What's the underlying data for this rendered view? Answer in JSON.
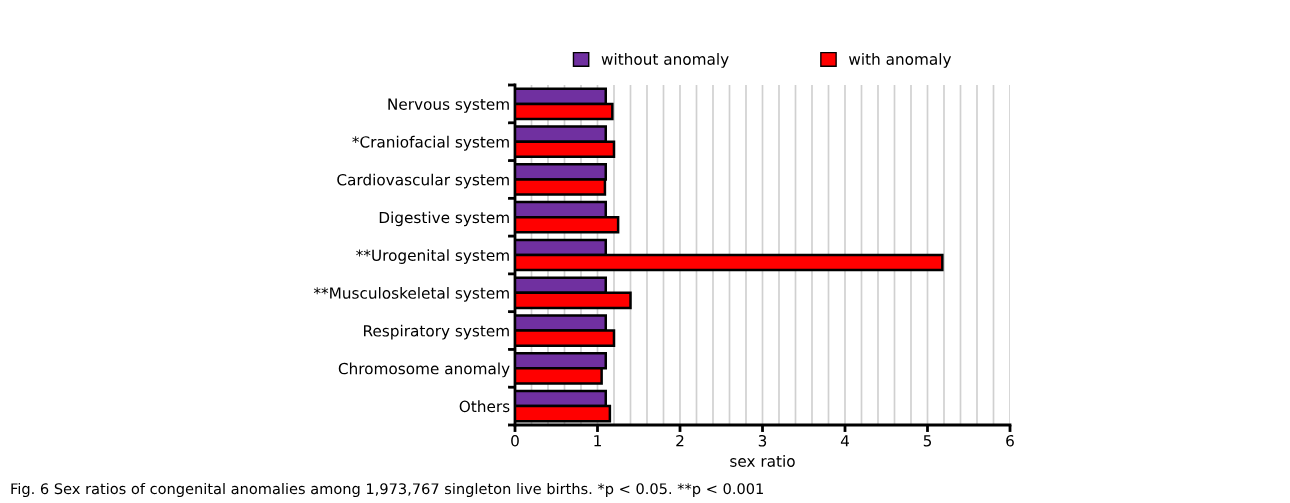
{
  "chart_data": {
    "type": "bar",
    "orientation": "horizontal",
    "xlabel": "sex ratio",
    "categories": [
      "Nervous system",
      "*Craniofacial system",
      "Cardiovascular system",
      "Digestive system",
      "**Urogenital system",
      "**Musculoskeletal system",
      "Respiratory system",
      "Chromosome anomaly",
      "Others"
    ],
    "series": [
      {
        "name": "without anomaly",
        "color": "#7030a0",
        "values": [
          1.1,
          1.1,
          1.1,
          1.1,
          1.1,
          1.1,
          1.1,
          1.1,
          1.1
        ]
      },
      {
        "name": "with anomaly",
        "color": "#ff0000",
        "values": [
          1.18,
          1.2,
          1.09,
          1.25,
          5.18,
          1.4,
          1.2,
          1.05,
          1.15
        ]
      }
    ],
    "xlim": [
      0,
      6
    ],
    "xticks": [
      0,
      {
        "value": 0.2,
        "label": null
      },
      {
        "value": 0.4,
        "label": null
      },
      {
        "value": 0.6,
        "label": null
      },
      {
        "value": 0.8,
        "label": null
      },
      1,
      {
        "value": 1.2,
        "label": null
      },
      {
        "value": 1.4,
        "label": null
      },
      {
        "value": 1.6,
        "label": null
      },
      {
        "value": 1.8,
        "label": null
      },
      2,
      {
        "value": 2.2,
        "label": null
      },
      {
        "value": 2.4,
        "label": null
      },
      {
        "value": 2.6,
        "label": null
      },
      {
        "value": 2.8,
        "label": null
      },
      3,
      {
        "value": 3.2,
        "label": null
      },
      {
        "value": 3.4,
        "label": null
      },
      {
        "value": 3.6,
        "label": null
      },
      {
        "value": 3.8,
        "label": null
      },
      4,
      {
        "value": 4.2,
        "label": null
      },
      {
        "value": 4.4,
        "label": null
      },
      {
        "value": 4.6,
        "label": null
      },
      {
        "value": 4.8,
        "label": null
      },
      5,
      {
        "value": 5.2,
        "label": null
      },
      {
        "value": 5.4,
        "label": null
      },
      {
        "value": 5.6,
        "label": null
      },
      {
        "value": 5.8,
        "label": null
      },
      6
    ],
    "grid": "x",
    "legend": "top",
    "annotations": [
      "Fig. 6 Sex ratios of congenital anomalies among 1,973,767 singleton live births. *p < 0.05. **p < 0.001"
    ]
  }
}
